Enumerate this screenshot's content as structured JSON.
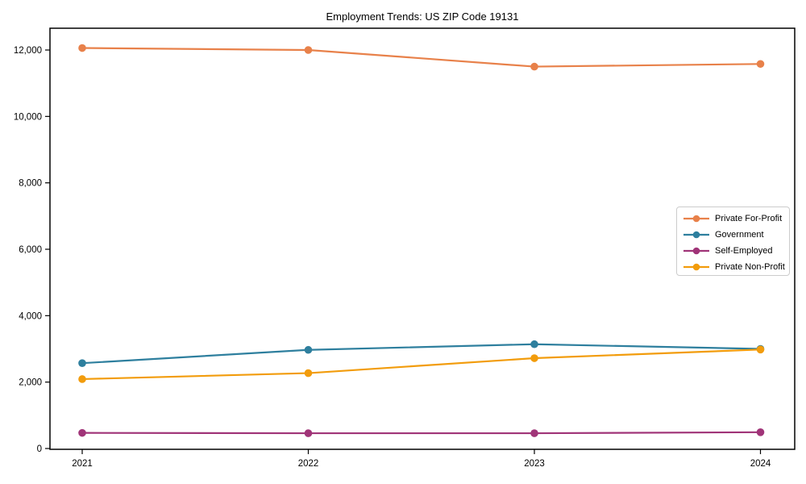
{
  "chart_data": {
    "type": "line",
    "title": "Employment Trends: US ZIP Code 19131",
    "x": [
      2021,
      2022,
      2023,
      2024
    ],
    "x_tick_labels": [
      "2021",
      "2022",
      "2023",
      "2024"
    ],
    "y_ticks": {
      "values": [
        0,
        2000,
        4000,
        6000,
        8000,
        10000,
        12000
      ],
      "labels": [
        "0",
        "2,000",
        "4,000",
        "6,000",
        "8,000",
        "10,000",
        "12,000"
      ]
    },
    "ylim": [
      0,
      12650
    ],
    "grid": false,
    "legend_position": "center-right",
    "series": [
      {
        "name": "Private For-Profit",
        "color": "#e8814a",
        "values": [
          12060,
          12000,
          11500,
          11580
        ]
      },
      {
        "name": "Government",
        "color": "#2e7f9e",
        "values": [
          2570,
          2970,
          3140,
          3000
        ]
      },
      {
        "name": "Self-Employed",
        "color": "#a03478",
        "values": [
          470,
          460,
          460,
          490
        ]
      },
      {
        "name": "Private Non-Profit",
        "color": "#f29c0c",
        "values": [
          2090,
          2270,
          2720,
          2980
        ]
      }
    ]
  }
}
